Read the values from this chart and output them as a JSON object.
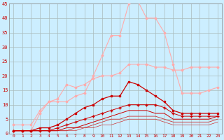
{
  "background_color": "#cceeff",
  "grid_color": "#aabbbb",
  "xlabel_color": "#cc0000",
  "tick_color": "#cc0000",
  "arrow_color": "#cc0000",
  "xlim": [
    -0.5,
    23.5
  ],
  "ylim": [
    0,
    45
  ],
  "yticks": [
    0,
    5,
    10,
    15,
    20,
    25,
    30,
    35,
    40,
    45
  ],
  "xticks": [
    0,
    1,
    2,
    3,
    4,
    5,
    6,
    7,
    8,
    9,
    10,
    11,
    12,
    13,
    14,
    15,
    16,
    17,
    18,
    19,
    20,
    21,
    22,
    23
  ],
  "series": [
    {
      "x": [
        0,
        1,
        2,
        3,
        4,
        5,
        6,
        7,
        8,
        9,
        10,
        11,
        12,
        13,
        14,
        15,
        16,
        17,
        18,
        19,
        20,
        21,
        22,
        23
      ],
      "y": [
        1,
        1,
        1,
        7,
        11,
        11,
        11,
        13,
        14,
        20,
        27,
        34,
        34,
        45,
        46,
        40,
        40,
        35,
        24,
        14,
        14,
        14,
        15,
        16
      ],
      "color": "#ffaaaa",
      "marker": "D",
      "markersize": 1.5,
      "linewidth": 0.8,
      "zorder": 3
    },
    {
      "x": [
        0,
        1,
        2,
        3,
        4,
        5,
        6,
        7,
        8,
        9,
        10,
        11,
        12,
        13,
        14,
        15,
        16,
        17,
        18,
        19,
        20,
        21,
        22,
        23
      ],
      "y": [
        3,
        3,
        3,
        8,
        11,
        12,
        17,
        16,
        17,
        19,
        20,
        20,
        21,
        24,
        24,
        24,
        23,
        23,
        22,
        22,
        23,
        23,
        23,
        23
      ],
      "color": "#ffaaaa",
      "marker": "D",
      "markersize": 1.5,
      "linewidth": 0.8,
      "zorder": 3
    },
    {
      "x": [
        0,
        1,
        2,
        3,
        4,
        5,
        6,
        7,
        8,
        9,
        10,
        11,
        12,
        13,
        14,
        15,
        16,
        17,
        18,
        19,
        20,
        21,
        22,
        23
      ],
      "y": [
        1,
        1,
        1,
        2,
        2,
        3,
        5,
        7,
        9,
        10,
        12,
        13,
        13,
        18,
        17,
        15,
        13,
        11,
        8,
        7,
        7,
        7,
        7,
        7
      ],
      "color": "#cc0000",
      "marker": "s",
      "markersize": 1.5,
      "linewidth": 0.9,
      "zorder": 5
    },
    {
      "x": [
        0,
        1,
        2,
        3,
        4,
        5,
        6,
        7,
        8,
        9,
        10,
        11,
        12,
        13,
        14,
        15,
        16,
        17,
        18,
        19,
        20,
        21,
        22,
        23
      ],
      "y": [
        1,
        1,
        1,
        1,
        1,
        2,
        3,
        4,
        5,
        6,
        7,
        8,
        9,
        10,
        10,
        10,
        10,
        9,
        7,
        6,
        6,
        6,
        6,
        6
      ],
      "color": "#cc0000",
      "marker": "+",
      "markersize": 2.5,
      "linewidth": 0.7,
      "zorder": 4
    },
    {
      "x": [
        0,
        1,
        2,
        3,
        4,
        5,
        6,
        7,
        8,
        9,
        10,
        11,
        12,
        13,
        14,
        15,
        16,
        17,
        18,
        19,
        20,
        21,
        22,
        23
      ],
      "y": [
        1,
        1,
        1,
        1,
        1,
        1,
        2,
        2,
        3,
        4,
        5,
        6,
        7,
        8,
        8,
        8,
        7,
        7,
        5,
        5,
        5,
        5,
        5,
        6
      ],
      "color": "#cc0000",
      "marker": null,
      "linewidth": 0.7,
      "zorder": 3
    },
    {
      "x": [
        0,
        1,
        2,
        3,
        4,
        5,
        6,
        7,
        8,
        9,
        10,
        11,
        12,
        13,
        14,
        15,
        16,
        17,
        18,
        19,
        20,
        21,
        22,
        23
      ],
      "y": [
        1,
        1,
        1,
        1,
        1,
        1,
        1,
        2,
        2,
        3,
        4,
        5,
        5,
        6,
        6,
        6,
        6,
        5,
        4,
        4,
        4,
        4,
        4,
        5
      ],
      "color": "#cc3333",
      "marker": null,
      "linewidth": 0.6,
      "zorder": 2
    },
    {
      "x": [
        0,
        1,
        2,
        3,
        4,
        5,
        6,
        7,
        8,
        9,
        10,
        11,
        12,
        13,
        14,
        15,
        16,
        17,
        18,
        19,
        20,
        21,
        22,
        23
      ],
      "y": [
        1,
        1,
        1,
        1,
        1,
        1,
        1,
        1,
        2,
        2,
        3,
        3,
        4,
        5,
        5,
        5,
        5,
        4,
        3,
        3,
        3,
        3,
        3,
        4
      ],
      "color": "#cc3333",
      "marker": null,
      "linewidth": 0.5,
      "zorder": 2
    }
  ]
}
